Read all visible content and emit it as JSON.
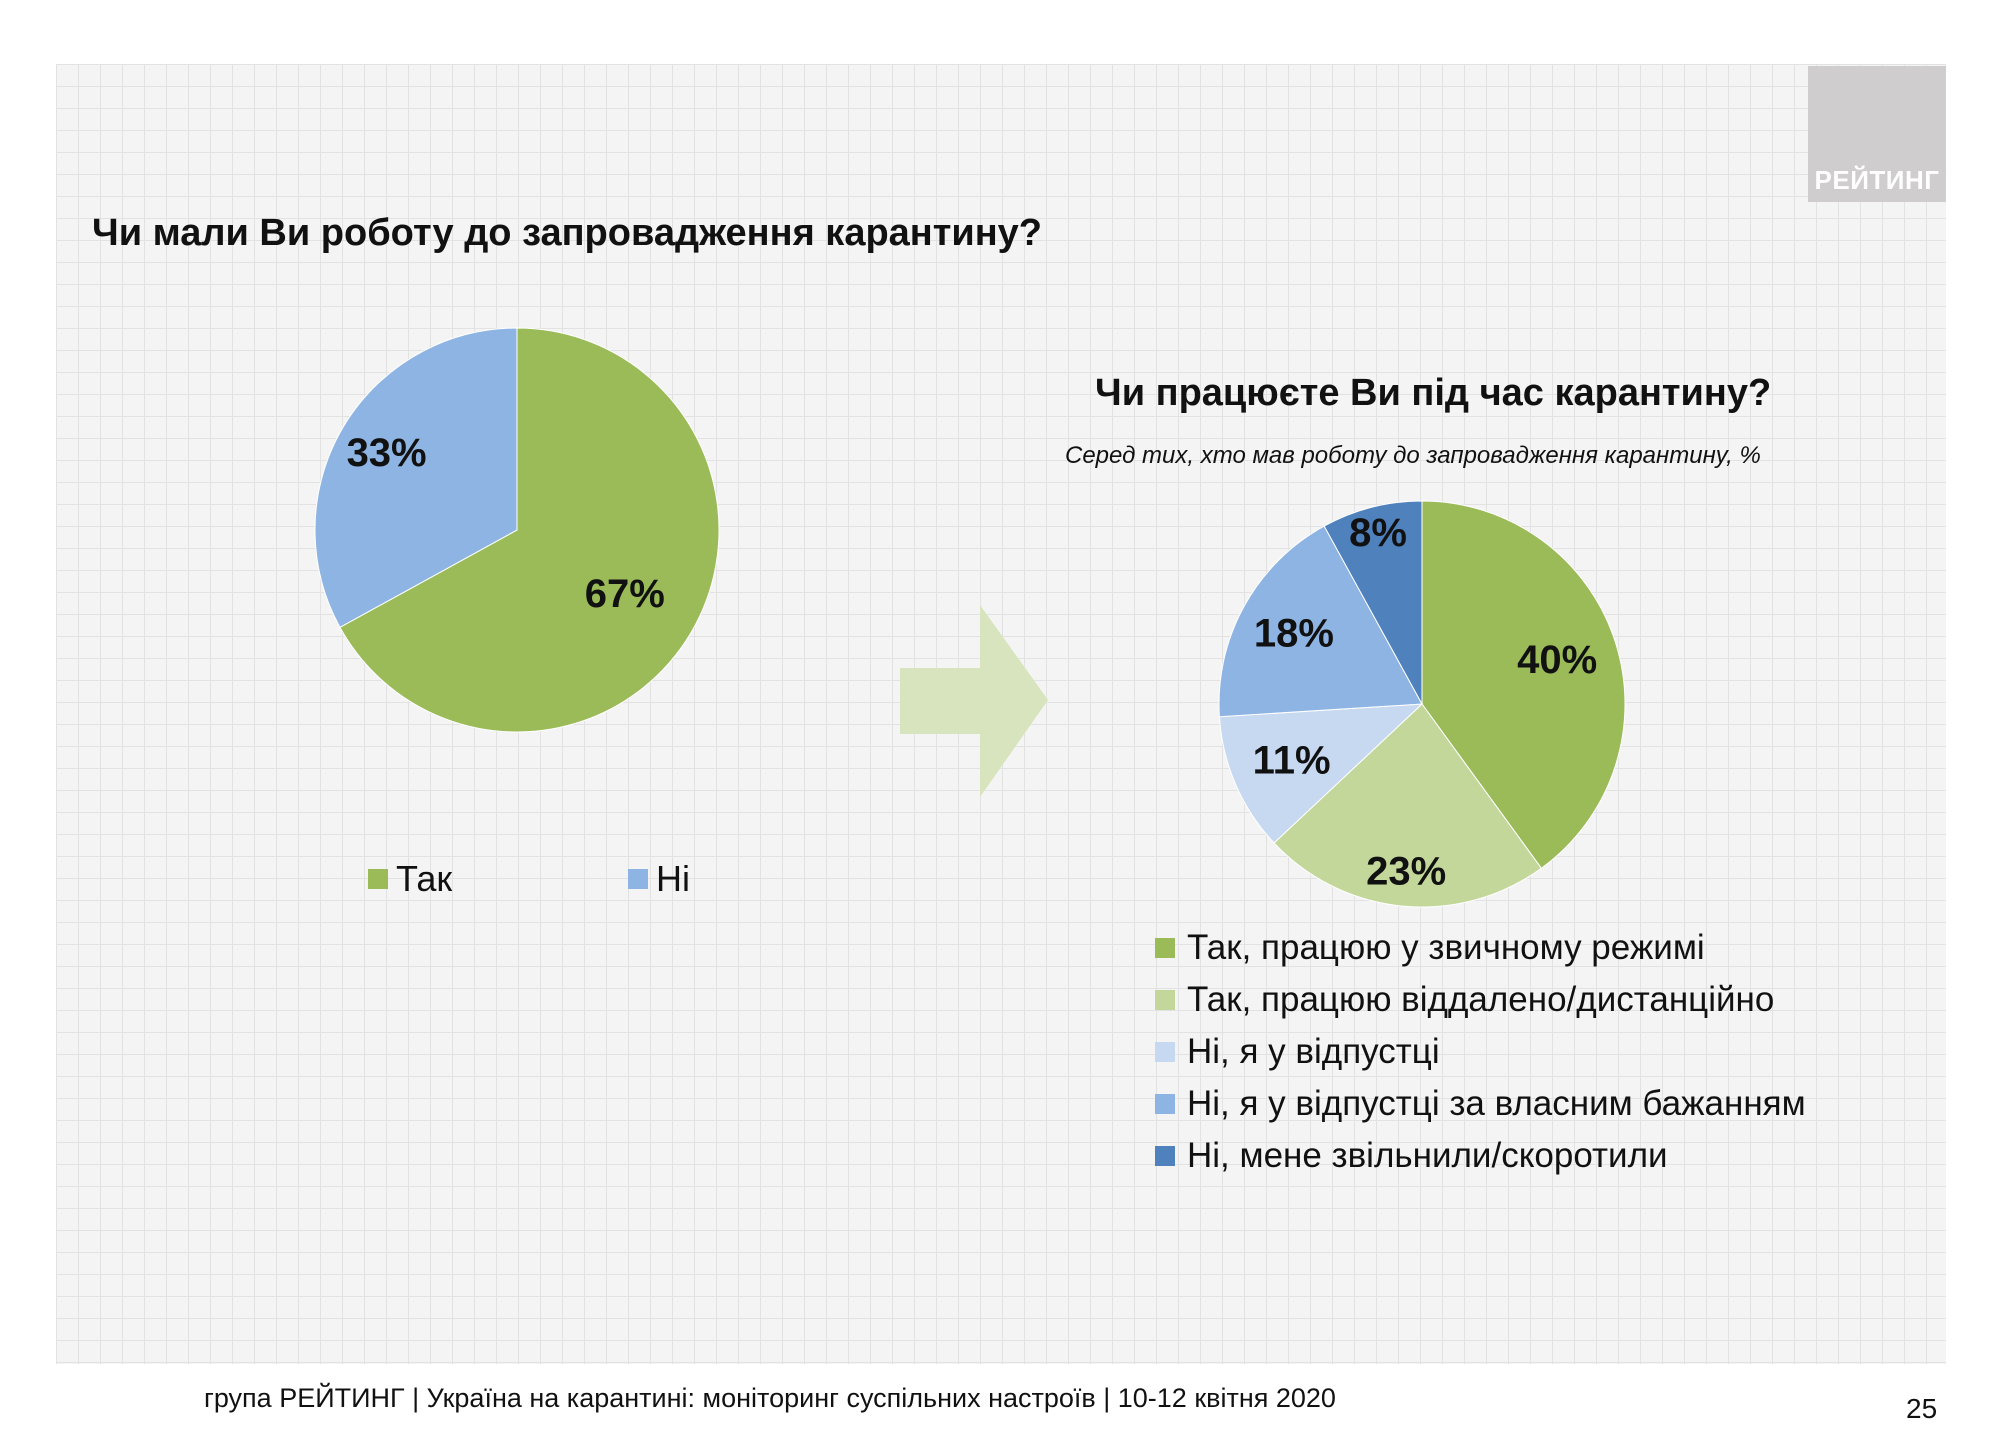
{
  "brand": {
    "logo_text": "РЕЙТИНГ"
  },
  "colors": {
    "green": "#9bbb59",
    "light_green": "#c4d79b",
    "pale_blue": "#c6d9f1",
    "medium_blue": "#8eb4e3",
    "dark_blue": "#4f81bd",
    "arrow": "#d7e4bd"
  },
  "chart_data": [
    {
      "type": "pie",
      "title": "Чи мали Ви роботу до запровадження карантину?",
      "categories": [
        "Так",
        "Ні"
      ],
      "values": [
        67,
        33
      ],
      "labels": [
        "67%",
        "33%"
      ],
      "colors": [
        "#9bbb59",
        "#8eb4e3"
      ],
      "legend": "bottom"
    },
    {
      "type": "pie",
      "title": "Чи працюєте Ви під час карантину?",
      "subtitle": "Серед тих, хто мав роботу до запровадження карантину, %",
      "categories": [
        "Так, працюю у звичному режимі",
        "Так, працюю віддалено/дистанційно",
        "Ні, я у відпустці",
        "Ні, я у відпустці за власним бажанням",
        "Ні, мене звільнили/скоротили"
      ],
      "values": [
        40,
        23,
        11,
        18,
        8
      ],
      "labels": [
        "40%",
        "23%",
        "11%",
        "18%",
        "8%"
      ],
      "colors": [
        "#9bbb59",
        "#c4d79b",
        "#c6d9f1",
        "#8eb4e3",
        "#4f81bd"
      ],
      "legend": "bottom"
    }
  ],
  "footer": {
    "text": "група РЕЙТИНГ | Україна на карантині: моніторинг суспільних настроїв  | 10-12 квітня  2020",
    "page_number": "25"
  }
}
